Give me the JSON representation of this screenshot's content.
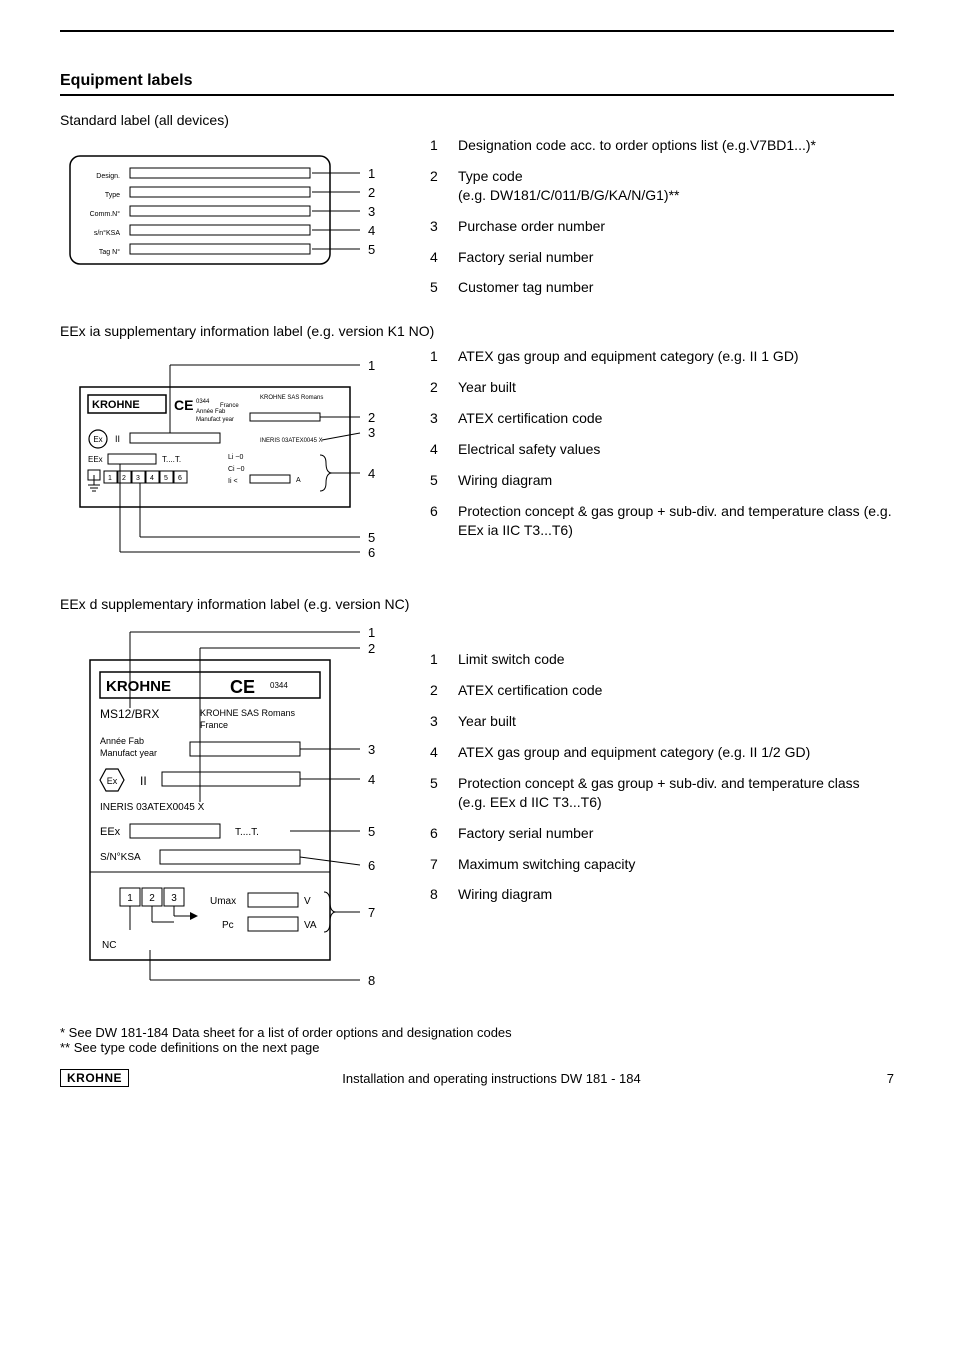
{
  "section_title": "Equipment labels",
  "standard": {
    "heading": "Standard label (all devices)",
    "diagram": {
      "rows": [
        {
          "label": "Design.",
          "callout": "1"
        },
        {
          "label": "Type",
          "callout": "2"
        },
        {
          "label": "Comm.N°",
          "callout": "3"
        },
        {
          "label": "s/n°KSA",
          "callout": "4"
        },
        {
          "label": "Tag N°",
          "callout": "5"
        }
      ],
      "font_size_label": 7,
      "font_size_callout": 13
    },
    "legend": [
      {
        "n": "1",
        "t": "Designation code acc. to order options list (e.g.V7BD1...)*"
      },
      {
        "n": "2",
        "t": "Type code\n(e.g. DW181/C/011/B/G/KA/N/G1)**"
      },
      {
        "n": "3",
        "t": "Purchase order number"
      },
      {
        "n": "4",
        "t": "Factory serial number"
      },
      {
        "n": "5",
        "t": "Customer tag number"
      }
    ]
  },
  "eexia": {
    "heading": "EEx ia supplementary information label (e.g. version K1 NO)",
    "diagram": {
      "brand": "KROHNE",
      "ce": "CE",
      "ce_num": "0344",
      "addr_line1": "KROHNE SAS Romans",
      "addr_line2": "France",
      "year_label1": "Année Fab",
      "year_label2": "Manufact year",
      "atex_text": "INERIS 03ATEX0045 X",
      "ex_mark_text": "Ex",
      "ex_text": "II",
      "eex_label": "EEx",
      "temp_label": "T....T.",
      "elec_lines": [
        "Li ~0",
        "Ci ~0",
        "Ii <"
      ],
      "elec_unit": "A",
      "terminals": [
        "1",
        "2",
        "3",
        "4",
        "5",
        "6"
      ],
      "callouts": [
        "1",
        "2",
        "3",
        "4",
        "5",
        "6"
      ]
    },
    "legend": [
      {
        "n": "1",
        "t": "ATEX gas group and equipment category (e.g. II 1 GD)"
      },
      {
        "n": "2",
        "t": "Year built"
      },
      {
        "n": "3",
        "t": "ATEX certification code"
      },
      {
        "n": "4",
        "t": "Electrical safety values"
      },
      {
        "n": "5",
        "t": "Wiring diagram"
      },
      {
        "n": "6",
        "t": "Protection concept & gas group + sub-div. and temperature class (e.g. EEx ia IIC T3...T6)"
      }
    ]
  },
  "eexd": {
    "heading": "EEx d supplementary information label (e.g. version NC)",
    "diagram": {
      "brand": "KROHNE",
      "ce": "CE",
      "ce_num": "0344",
      "model": "MS12/BRX",
      "addr_line1": "KROHNE SAS Romans",
      "addr_line2": "France",
      "year_label1": "Année Fab",
      "year_label2": "Manufact year",
      "ex_mark_text": "Ex",
      "ex_group": "II",
      "atex_text": "INERIS 03ATEX0045 X",
      "eex_label": "EEx",
      "temp_label": "T....T.",
      "sn_label": "S/N°KSA",
      "terminals": [
        "1",
        "2",
        "3"
      ],
      "umax_label": "Umax",
      "umax_unit": "V",
      "pc_label": "Pc",
      "pc_unit": "VA",
      "nc_label": "NC",
      "callouts": [
        "1",
        "2",
        "3",
        "4",
        "5",
        "6",
        "7",
        "8"
      ]
    },
    "legend": [
      {
        "n": "1",
        "t": "Limit switch code"
      },
      {
        "n": "2",
        "t": "ATEX certification code"
      },
      {
        "n": "3",
        "t": "Year built"
      },
      {
        "n": "4",
        "t": "ATEX gas group and equipment category (e.g. II 1/2 GD)"
      },
      {
        "n": "5",
        "t": "Protection concept & gas group + sub-div. and temperature class\n(e.g. EEx d IIC T3...T6)"
      },
      {
        "n": "6",
        "t": "Factory serial number"
      },
      {
        "n": "7",
        "t": "Maximum switching capacity"
      },
      {
        "n": "8",
        "t": "Wiring diagram"
      }
    ]
  },
  "footnotes": [
    "* See DW 181-184 Data sheet for a list of order options and designation codes",
    "** See type code definitions on the next page"
  ],
  "footer": {
    "brand": "KROHNE",
    "center": "Installation and operating instructions DW 181 - 184",
    "page": "7"
  },
  "colors": {
    "text": "#000000",
    "bg": "#ffffff",
    "line": "#000000"
  }
}
